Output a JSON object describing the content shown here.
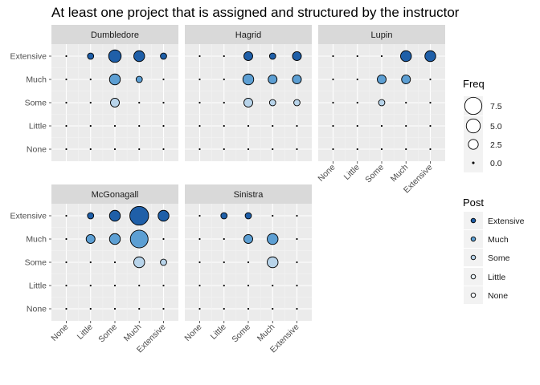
{
  "chart_data": {
    "type": "scatter",
    "title": "At least one project that is assigned and structured by the instructor",
    "x_categories": [
      "None",
      "Little",
      "Some",
      "Much",
      "Extensive"
    ],
    "y_categories": [
      "None",
      "Little",
      "Some",
      "Much",
      "Extensive"
    ],
    "facets": [
      {
        "name": "Dumbledore",
        "points": [
          {
            "x": "Little",
            "y": "Extensive",
            "freq": 1
          },
          {
            "x": "Some",
            "y": "Extensive",
            "freq": 4
          },
          {
            "x": "Much",
            "y": "Extensive",
            "freq": 3
          },
          {
            "x": "Extensive",
            "y": "Extensive",
            "freq": 1
          },
          {
            "x": "Some",
            "y": "Much",
            "freq": 3
          },
          {
            "x": "Much",
            "y": "Much",
            "freq": 1
          },
          {
            "x": "Some",
            "y": "Some",
            "freq": 2
          }
        ]
      },
      {
        "name": "Hagrid",
        "points": [
          {
            "x": "Some",
            "y": "Extensive",
            "freq": 2
          },
          {
            "x": "Much",
            "y": "Extensive",
            "freq": 1
          },
          {
            "x": "Extensive",
            "y": "Extensive",
            "freq": 2
          },
          {
            "x": "Some",
            "y": "Much",
            "freq": 3
          },
          {
            "x": "Much",
            "y": "Much",
            "freq": 2
          },
          {
            "x": "Extensive",
            "y": "Much",
            "freq": 2
          },
          {
            "x": "Some",
            "y": "Some",
            "freq": 2
          },
          {
            "x": "Much",
            "y": "Some",
            "freq": 1
          },
          {
            "x": "Extensive",
            "y": "Some",
            "freq": 1
          }
        ]
      },
      {
        "name": "Lupin",
        "points": [
          {
            "x": "Much",
            "y": "Extensive",
            "freq": 3
          },
          {
            "x": "Extensive",
            "y": "Extensive",
            "freq": 3
          },
          {
            "x": "Some",
            "y": "Much",
            "freq": 2
          },
          {
            "x": "Much",
            "y": "Much",
            "freq": 2
          },
          {
            "x": "Some",
            "y": "Some",
            "freq": 1
          }
        ]
      },
      {
        "name": "McGonagall",
        "points": [
          {
            "x": "Little",
            "y": "Extensive",
            "freq": 1
          },
          {
            "x": "Some",
            "y": "Extensive",
            "freq": 3
          },
          {
            "x": "Much",
            "y": "Extensive",
            "freq": 9
          },
          {
            "x": "Extensive",
            "y": "Extensive",
            "freq": 3
          },
          {
            "x": "Little",
            "y": "Much",
            "freq": 2
          },
          {
            "x": "Some",
            "y": "Much",
            "freq": 3
          },
          {
            "x": "Much",
            "y": "Much",
            "freq": 8
          },
          {
            "x": "Much",
            "y": "Some",
            "freq": 3
          },
          {
            "x": "Extensive",
            "y": "Some",
            "freq": 1
          }
        ]
      },
      {
        "name": "Sinistra",
        "points": [
          {
            "x": "Little",
            "y": "Extensive",
            "freq": 1
          },
          {
            "x": "Some",
            "y": "Extensive",
            "freq": 1
          },
          {
            "x": "Some",
            "y": "Much",
            "freq": 2
          },
          {
            "x": "Much",
            "y": "Much",
            "freq": 3
          },
          {
            "x": "Much",
            "y": "Some",
            "freq": 3
          }
        ]
      }
    ],
    "colors": {
      "Extensive": "#1f5fa8",
      "Much": "#5d9fd3",
      "Some": "#b8d4ea",
      "Little": "#e8f1f8",
      "None": "#f7fbff"
    },
    "legend": {
      "freq": {
        "title": "Freq",
        "values": [
          7.5,
          5.0,
          2.5,
          0.0
        ],
        "labels": [
          "7.5",
          "5.0",
          "2.5",
          "0.0"
        ]
      },
      "post": {
        "title": "Post",
        "labels": [
          "Extensive",
          "Much",
          "Some",
          "Little",
          "None"
        ]
      }
    },
    "grid": true,
    "legend_position": "right"
  }
}
